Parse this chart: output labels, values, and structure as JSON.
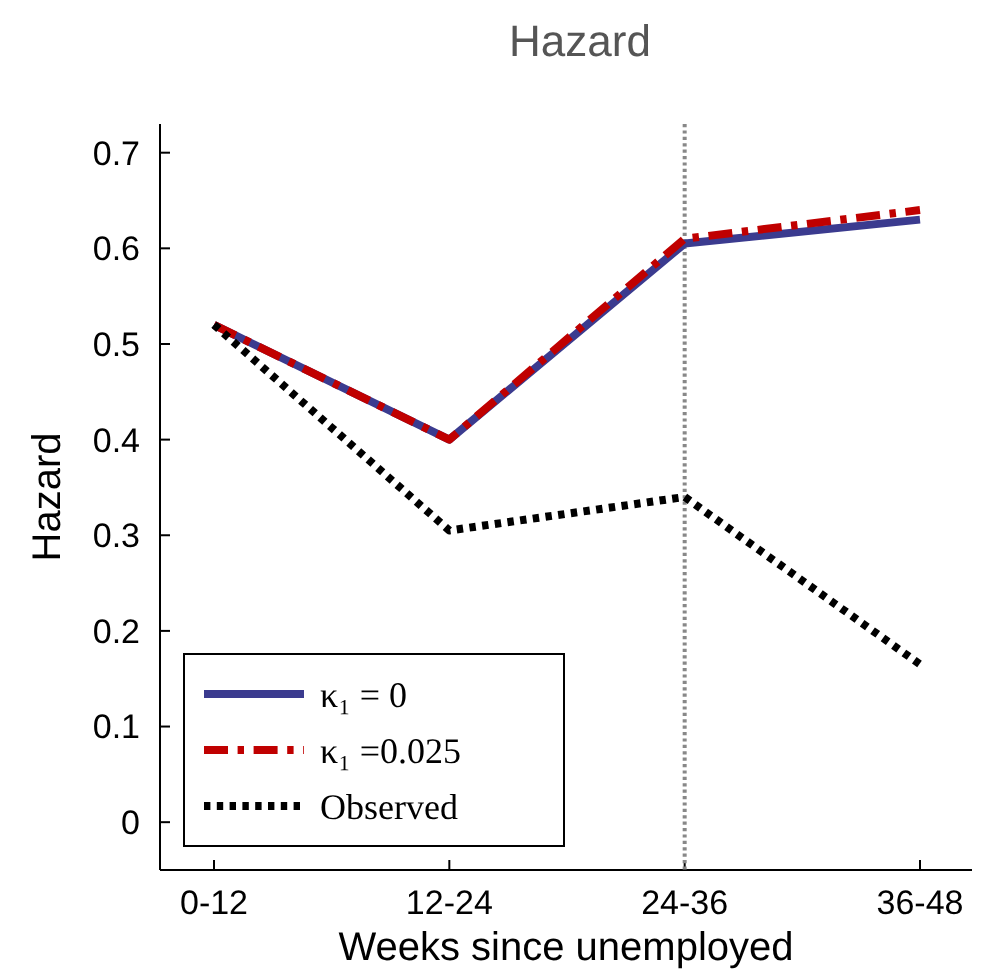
{
  "chart_data": {
    "type": "line",
    "title": "Hazard",
    "xlabel": "Weeks since unemployed",
    "ylabel": "Hazard",
    "categories": [
      "0-12",
      "12-24",
      "24-36",
      "36-48"
    ],
    "ylim": [
      -0.05,
      0.73
    ],
    "yticks": [
      0,
      0.1,
      0.2,
      0.3,
      0.4,
      0.5,
      0.6,
      0.7
    ],
    "series": [
      {
        "name": "κ₁ = 0",
        "color": "#3b3b8f",
        "line_style": "solid",
        "values": [
          0.52,
          0.4,
          0.605,
          0.63
        ]
      },
      {
        "name": "κ₁ =0.025",
        "color": "#c00000",
        "line_style": "dashed",
        "values": [
          0.52,
          0.4,
          0.61,
          0.64
        ]
      },
      {
        "name": "Observed",
        "color": "#000000",
        "line_style": "dotted",
        "values": [
          0.52,
          0.305,
          0.34,
          0.165
        ]
      }
    ],
    "ref_lines": [
      {
        "axis": "x",
        "value": "24-36",
        "color": "#888888",
        "line_style": "dotted"
      }
    ],
    "legend": "bottom left",
    "grid": false,
    "marker": "none"
  }
}
